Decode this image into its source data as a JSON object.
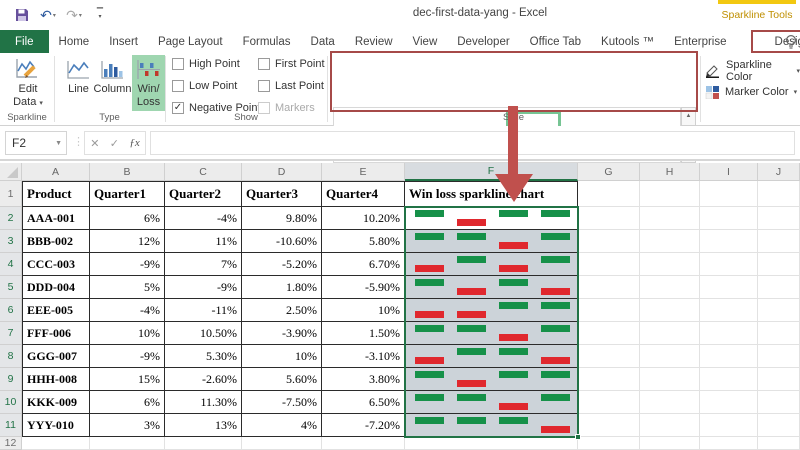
{
  "app": {
    "title": "dec-first-data-yang - Excel",
    "contextual_tab_group": "Sparkline Tools"
  },
  "qat": {
    "buttons": [
      "save",
      "undo",
      "redo",
      "customize-quick-access-toolbar"
    ]
  },
  "tabs": {
    "items": [
      {
        "label": "File",
        "active": true
      },
      {
        "label": "Home"
      },
      {
        "label": "Insert"
      },
      {
        "label": "Page Layout"
      },
      {
        "label": "Formulas"
      },
      {
        "label": "Data"
      },
      {
        "label": "Review"
      },
      {
        "label": "View"
      },
      {
        "label": "Developer"
      },
      {
        "label": "Office Tab"
      },
      {
        "label": "Kutools ™"
      },
      {
        "label": "Enterprise"
      },
      {
        "label": "Design",
        "highlighted": true
      }
    ]
  },
  "ribbon": {
    "sparkline_group": {
      "label": "Sparkline",
      "edit_data_line1": "Edit",
      "edit_data_line2": "Data"
    },
    "type_group": {
      "label": "Type",
      "buttons": [
        {
          "label1": "Line",
          "label2": ""
        },
        {
          "label1": "Column",
          "label2": ""
        },
        {
          "label1": "Win/",
          "label2": "Loss",
          "selected": true
        }
      ]
    },
    "show_group": {
      "label": "Show",
      "options": [
        {
          "label": "High Point",
          "checked": false
        },
        {
          "label": "Low Point",
          "checked": false
        },
        {
          "label": "Negative Points",
          "checked": true
        },
        {
          "label": "First Point",
          "checked": false
        },
        {
          "label": "Last Point",
          "checked": false
        },
        {
          "label": "Markers",
          "checked": false,
          "disabled": true
        }
      ]
    },
    "style_group": {
      "label": "Style",
      "items": [
        {
          "name": "style-dark-orange",
          "up": "#4d4d4d",
          "down": "#f2a33a"
        },
        {
          "name": "style-blue-orange",
          "up": "#4a7ebb",
          "down": "#f6b338"
        },
        {
          "name": "style-faded-pink",
          "up": "#aadbb8",
          "down": "#f4b6c0"
        },
        {
          "name": "style-green-red",
          "up": "#169149",
          "down": "#e0282e",
          "selected": true
        },
        {
          "name": "style-navy-green",
          "up": "#3f4f6b",
          "down": "#4ea72e"
        },
        {
          "name": "style-black-green",
          "up": "#262626",
          "down": "#4e9a3c"
        }
      ]
    },
    "color_group": {
      "sparkline_color_label": "Sparkline Color",
      "marker_color_label": "Marker Color"
    }
  },
  "formula_bar": {
    "name_box": "F2",
    "formula": ""
  },
  "sheet": {
    "columns": [
      "A",
      "B",
      "C",
      "D",
      "E",
      "F",
      "G",
      "H",
      "I",
      "J"
    ],
    "selected_column": "F",
    "header_row": {
      "num": "1",
      "cells": [
        "Product",
        "Quarter1",
        "Quarter2",
        "Quarter3",
        "Quarter4"
      ],
      "f_cell": "Win loss sparkline chart"
    },
    "data_rows": [
      {
        "num": "2",
        "product": "AAA-001",
        "values": [
          "6%",
          "-4%",
          "9.80%",
          "10.20%"
        ],
        "spark": [
          1,
          -1,
          1,
          1
        ]
      },
      {
        "num": "3",
        "product": "BBB-002",
        "values": [
          "12%",
          "11%",
          "-10.60%",
          "5.80%"
        ],
        "spark": [
          1,
          1,
          -1,
          1
        ]
      },
      {
        "num": "4",
        "product": "CCC-003",
        "values": [
          "-9%",
          "7%",
          "-5.20%",
          "6.70%"
        ],
        "spark": [
          -1,
          1,
          -1,
          1
        ]
      },
      {
        "num": "5",
        "product": "DDD-004",
        "values": [
          "5%",
          "-9%",
          "1.80%",
          "-5.90%"
        ],
        "spark": [
          1,
          -1,
          1,
          -1
        ]
      },
      {
        "num": "6",
        "product": "EEE-005",
        "values": [
          "-4%",
          "-11%",
          "2.50%",
          "10%"
        ],
        "spark": [
          -1,
          -1,
          1,
          1
        ]
      },
      {
        "num": "7",
        "product": "FFF-006",
        "values": [
          "10%",
          "10.50%",
          "-3.90%",
          "1.50%"
        ],
        "spark": [
          1,
          1,
          -1,
          1
        ]
      },
      {
        "num": "8",
        "product": "GGG-007",
        "values": [
          "-9%",
          "5.30%",
          "10%",
          "-3.10%"
        ],
        "spark": [
          -1,
          1,
          1,
          -1
        ]
      },
      {
        "num": "9",
        "product": "HHH-008",
        "values": [
          "15%",
          "-2.60%",
          "5.60%",
          "3.80%"
        ],
        "spark": [
          1,
          -1,
          1,
          1
        ]
      },
      {
        "num": "10",
        "product": "KKK-009",
        "values": [
          "6%",
          "11.30%",
          "-7.50%",
          "6.50%"
        ],
        "spark": [
          1,
          1,
          -1,
          1
        ]
      },
      {
        "num": "11",
        "product": "YYY-010",
        "values": [
          "3%",
          "13%",
          "4%",
          "-7.20%"
        ],
        "spark": [
          1,
          1,
          1,
          -1
        ]
      }
    ],
    "partial_row_num": "12",
    "spark_win_color": "#169149",
    "spark_loss_color": "#e0282e"
  },
  "colors": {
    "excel_green": "#217346",
    "annotation_red": "#a64a48",
    "arrow_red": "#c0504d",
    "contextual_gold": "#bf8f00",
    "selection_fill": "#ccd3d9"
  }
}
